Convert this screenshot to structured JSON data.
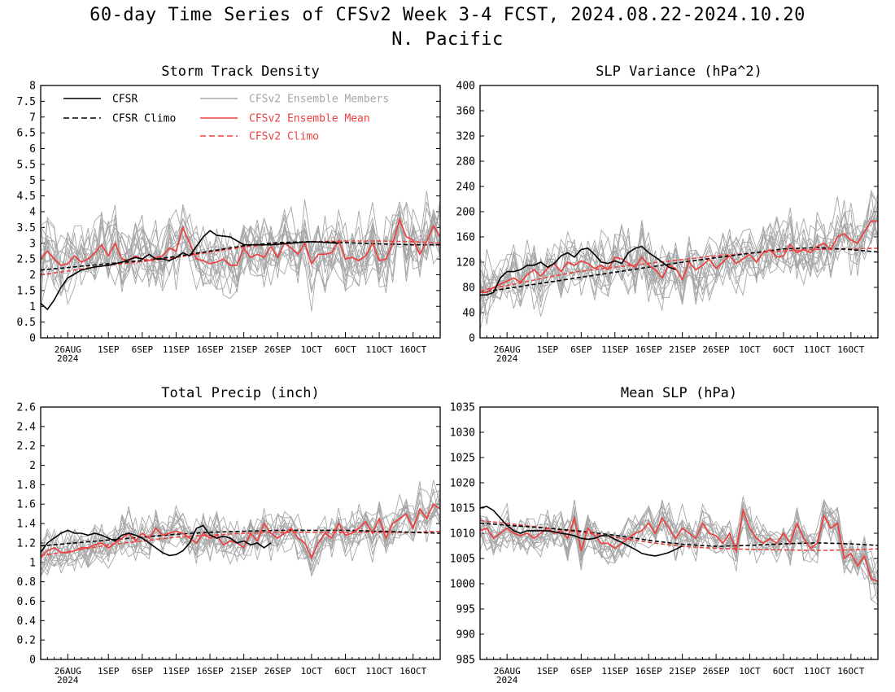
{
  "page": {
    "title": "60-day Time Series of CFSv2 Week 3-4 FCST, 2024.08.22-2024.10.20",
    "subtitle": "N. Pacific"
  },
  "colors": {
    "cfsr": "#000000",
    "cfsr_climo": "#000000",
    "members": "#a6a6a6",
    "ens_mean": "#ef4040",
    "cfsv2_climo": "#ef4040"
  },
  "legend": {
    "items": [
      {
        "key": "cfsr",
        "label": "CFSR",
        "style": "solid",
        "color": "#000000"
      },
      {
        "key": "cfsr_climo",
        "label": "CFSR Climo",
        "style": "dashed",
        "color": "#000000"
      },
      {
        "key": "members",
        "label": "CFSv2 Ensemble Members",
        "style": "solid",
        "color": "#a6a6a6"
      },
      {
        "key": "ens_mean",
        "label": "CFSv2 Ensemble Mean",
        "style": "solid",
        "color": "#ef4040"
      },
      {
        "key": "cfsv2_climo",
        "label": "CFSv2 Climo",
        "style": "dashed",
        "color": "#ef4040"
      }
    ]
  },
  "chart_data": [
    {
      "type": "line",
      "title": "Storm Track Density",
      "ylim": [
        0,
        8
      ],
      "yticks": [
        "0",
        "0.5",
        "1",
        "1.5",
        "2",
        "2.5",
        "3",
        "3.5",
        "4",
        "4.5",
        "5",
        "5.5",
        "6",
        "6.5",
        "7",
        "7.5",
        "8"
      ],
      "xticks": [
        {
          "day": 4,
          "label": "26AUG"
        },
        {
          "day": 10,
          "label": "1SEP"
        },
        {
          "day": 15,
          "label": "6SEP"
        },
        {
          "day": 20,
          "label": "11SEP"
        },
        {
          "day": 25,
          "label": "16SEP"
        },
        {
          "day": 30,
          "label": "21SEP"
        },
        {
          "day": 35,
          "label": "26SEP"
        },
        {
          "day": 40,
          "label": "1OCT"
        },
        {
          "day": 45,
          "label": "6OCT"
        },
        {
          "day": 50,
          "label": "11OCT"
        },
        {
          "day": 55,
          "label": "16OCT"
        }
      ],
      "xsublabel": "2024",
      "xrange": [
        0,
        59
      ],
      "cfsr": {
        "x": [
          0,
          1,
          2,
          3,
          4,
          6,
          8,
          10,
          12,
          14,
          15,
          16,
          17,
          18,
          19,
          20,
          21,
          22,
          23,
          24,
          25,
          26,
          28,
          30,
          34,
          40,
          44
        ],
        "y": [
          1.1,
          0.9,
          1.2,
          1.6,
          1.9,
          2.15,
          2.25,
          2.3,
          2.4,
          2.55,
          2.5,
          2.65,
          2.5,
          2.5,
          2.45,
          2.55,
          2.7,
          2.6,
          2.9,
          3.2,
          3.4,
          3.25,
          3.2,
          2.95,
          2.95,
          3.05,
          3.0
        ]
      },
      "cfsr_climo": {
        "x": [
          0,
          5,
          10,
          15,
          20,
          25,
          30,
          35,
          40,
          45,
          50,
          55,
          59
        ],
        "y": [
          2.15,
          2.25,
          2.35,
          2.45,
          2.58,
          2.75,
          2.92,
          3.02,
          3.05,
          3.02,
          2.98,
          2.95,
          2.95
        ]
      },
      "cfsv2_climo": {
        "x": [
          0,
          5,
          10,
          15,
          20,
          25,
          30,
          35,
          40,
          45,
          50,
          55,
          59
        ],
        "y": [
          2.0,
          2.15,
          2.3,
          2.42,
          2.55,
          2.72,
          2.88,
          2.98,
          3.05,
          3.07,
          3.07,
          3.05,
          3.0
        ]
      },
      "ens_mean": {
        "y": [
          2.5,
          2.75,
          2.5,
          2.3,
          2.35,
          2.6,
          2.4,
          2.5,
          2.7,
          2.95,
          2.6,
          3.0,
          2.5,
          2.45,
          2.6,
          2.5,
          2.45,
          2.55,
          2.6,
          2.85,
          2.75,
          3.5,
          3.0,
          2.5,
          2.45,
          2.35,
          2.4,
          2.5,
          2.3,
          2.3,
          2.85,
          2.55,
          2.65,
          2.55,
          2.9,
          2.55,
          3.0,
          2.85,
          2.65,
          3.0,
          2.35,
          2.65,
          2.65,
          2.7,
          3.1,
          2.5,
          2.55,
          2.45,
          2.6,
          3.0,
          2.45,
          2.5,
          3.0,
          3.75,
          3.2,
          3.1,
          2.65,
          3.05,
          3.55,
          3.2
        ]
      },
      "members": {
        "count": 16,
        "spread": 0.85,
        "seed": 11
      }
    },
    {
      "type": "line",
      "title": "SLP Variance (hPa^2)",
      "ylim": [
        0,
        400
      ],
      "yticks": [
        "0",
        "40",
        "80",
        "120",
        "160",
        "200",
        "240",
        "280",
        "320",
        "360",
        "400"
      ],
      "xticks": [
        {
          "day": 4,
          "label": "26AUG"
        },
        {
          "day": 10,
          "label": "1SEP"
        },
        {
          "day": 15,
          "label": "6SEP"
        },
        {
          "day": 20,
          "label": "11SEP"
        },
        {
          "day": 25,
          "label": "16SEP"
        },
        {
          "day": 30,
          "label": "21SEP"
        },
        {
          "day": 35,
          "label": "26SEP"
        },
        {
          "day": 40,
          "label": "1OCT"
        },
        {
          "day": 45,
          "label": "6OCT"
        },
        {
          "day": 50,
          "label": "11OCT"
        },
        {
          "day": 55,
          "label": "16OCT"
        }
      ],
      "xsublabel": "2024",
      "xrange": [
        0,
        59
      ],
      "cfsr": {
        "x": [
          0,
          1,
          2,
          3,
          4,
          5,
          6,
          7,
          8,
          9,
          10,
          11,
          12,
          13,
          14,
          15,
          16,
          17,
          18,
          19,
          20,
          21,
          22,
          23,
          24,
          25,
          26,
          27,
          28,
          29
        ],
        "y": [
          68,
          68,
          72,
          95,
          105,
          105,
          108,
          115,
          115,
          120,
          112,
          118,
          130,
          135,
          128,
          140,
          142,
          132,
          120,
          118,
          122,
          118,
          135,
          142,
          145,
          135,
          128,
          120,
          112,
          108
        ]
      },
      "cfsr_climo": {
        "x": [
          0,
          5,
          10,
          15,
          20,
          25,
          30,
          35,
          40,
          45,
          50,
          55,
          59
        ],
        "y": [
          72,
          80,
          88,
          96,
          104,
          112,
          120,
          127,
          134,
          141,
          143,
          140,
          136
        ]
      },
      "cfsv2_climo": {
        "x": [
          0,
          5,
          10,
          15,
          20,
          25,
          30,
          35,
          40,
          45,
          50,
          55,
          59
        ],
        "y": [
          75,
          85,
          96,
          106,
          112,
          118,
          124,
          130,
          134,
          138,
          140,
          141,
          142
        ]
      },
      "ens_mean": {
        "y": [
          72,
          72,
          80,
          85,
          90,
          95,
          88,
          100,
          108,
          98,
          110,
          118,
          105,
          120,
          115,
          122,
          118,
          110,
          115,
          108,
          128,
          125,
          118,
          112,
          128,
          115,
          108,
          95,
          115,
          110,
          92,
          120,
          108,
          115,
          125,
          110,
          120,
          130,
          118,
          125,
          132,
          120,
          135,
          140,
          128,
          130,
          148,
          135,
          140,
          135,
          145,
          150,
          140,
          160,
          165,
          155,
          150,
          168,
          185,
          185
        ]
      },
      "members": {
        "count": 16,
        "spread": 38,
        "seed": 23
      }
    },
    {
      "type": "line",
      "title": "Total Precip (inch)",
      "ylim": [
        0,
        2.6
      ],
      "yticks": [
        "0",
        "0.2",
        "0.4",
        "0.6",
        "0.8",
        "1",
        "1.2",
        "1.4",
        "1.6",
        "1.8",
        "2",
        "2.2",
        "2.4",
        "2.6"
      ],
      "xticks": [
        {
          "day": 4,
          "label": "26AUG"
        },
        {
          "day": 10,
          "label": "1SEP"
        },
        {
          "day": 15,
          "label": "6SEP"
        },
        {
          "day": 20,
          "label": "11SEP"
        },
        {
          "day": 25,
          "label": "16SEP"
        },
        {
          "day": 30,
          "label": "21SEP"
        },
        {
          "day": 35,
          "label": "26SEP"
        },
        {
          "day": 40,
          "label": "1OCT"
        },
        {
          "day": 45,
          "label": "6OCT"
        },
        {
          "day": 50,
          "label": "11OCT"
        },
        {
          "day": 55,
          "label": "16OCT"
        }
      ],
      "xsublabel": "2024",
      "xrange": [
        0,
        59
      ],
      "cfsr": {
        "x": [
          0,
          1,
          2,
          3,
          4,
          5,
          6,
          7,
          8,
          9,
          10,
          11,
          12,
          13,
          14,
          15,
          16,
          17,
          18,
          19,
          20,
          21,
          22,
          23,
          24,
          25,
          26,
          27,
          28,
          29,
          30,
          31,
          32,
          33,
          34
        ],
        "y": [
          1.1,
          1.2,
          1.25,
          1.3,
          1.33,
          1.3,
          1.3,
          1.28,
          1.3,
          1.28,
          1.25,
          1.22,
          1.28,
          1.3,
          1.28,
          1.25,
          1.2,
          1.15,
          1.1,
          1.07,
          1.08,
          1.12,
          1.2,
          1.35,
          1.38,
          1.28,
          1.25,
          1.27,
          1.25,
          1.2,
          1.22,
          1.18,
          1.2,
          1.15,
          1.2
        ]
      },
      "cfsr_climo": {
        "x": [
          0,
          5,
          10,
          15,
          20,
          25,
          30,
          35,
          40,
          45,
          50,
          55,
          59
        ],
        "y": [
          1.17,
          1.2,
          1.23,
          1.26,
          1.29,
          1.31,
          1.32,
          1.33,
          1.33,
          1.33,
          1.32,
          1.31,
          1.3
        ]
      },
      "cfsv2_climo": {
        "x": [
          0,
          5,
          10,
          15,
          20,
          25,
          30,
          35,
          40,
          45,
          50,
          55,
          59
        ],
        "y": [
          1.07,
          1.12,
          1.18,
          1.22,
          1.26,
          1.28,
          1.3,
          1.31,
          1.31,
          1.31,
          1.31,
          1.31,
          1.32
        ]
      },
      "ens_mean": {
        "y": [
          1.05,
          1.12,
          1.15,
          1.1,
          1.1,
          1.12,
          1.15,
          1.15,
          1.18,
          1.2,
          1.15,
          1.2,
          1.25,
          1.3,
          1.22,
          1.3,
          1.25,
          1.35,
          1.28,
          1.3,
          1.32,
          1.3,
          1.25,
          1.2,
          1.3,
          1.25,
          1.28,
          1.18,
          1.22,
          1.2,
          1.15,
          1.3,
          1.22,
          1.4,
          1.3,
          1.25,
          1.3,
          1.35,
          1.25,
          1.2,
          1.05,
          1.2,
          1.3,
          1.25,
          1.4,
          1.28,
          1.3,
          1.35,
          1.42,
          1.3,
          1.45,
          1.25,
          1.4,
          1.45,
          1.5,
          1.35,
          1.55,
          1.45,
          1.6,
          1.55
        ]
      },
      "members": {
        "count": 16,
        "spread": 0.17,
        "seed": 37
      }
    },
    {
      "type": "line",
      "title": "Mean SLP (hPa)",
      "ylim": [
        985,
        1035
      ],
      "yticks": [
        "985",
        "990",
        "995",
        "1000",
        "1005",
        "1010",
        "1015",
        "1020",
        "1025",
        "1030",
        "1035"
      ],
      "xticks": [
        {
          "day": 4,
          "label": "26AUG"
        },
        {
          "day": 10,
          "label": "1SEP"
        },
        {
          "day": 15,
          "label": "6SEP"
        },
        {
          "day": 20,
          "label": "11SEP"
        },
        {
          "day": 25,
          "label": "16SEP"
        },
        {
          "day": 30,
          "label": "21SEP"
        },
        {
          "day": 35,
          "label": "26SEP"
        },
        {
          "day": 40,
          "label": "1OCT"
        },
        {
          "day": 45,
          "label": "6OCT"
        },
        {
          "day": 50,
          "label": "11OCT"
        },
        {
          "day": 55,
          "label": "16OCT"
        }
      ],
      "xsublabel": "2024",
      "xrange": [
        0,
        59
      ],
      "cfsr": {
        "x": [
          0,
          1,
          2,
          3,
          4,
          5,
          6,
          7,
          8,
          9,
          10,
          11,
          12,
          13,
          14,
          15,
          16,
          17,
          18,
          19,
          20,
          21,
          22,
          23,
          24,
          25,
          26,
          27,
          28,
          29,
          30
        ],
        "y": [
          1015,
          1015.3,
          1014.5,
          1013,
          1011.5,
          1010.5,
          1010,
          1010.5,
          1010.5,
          1010.5,
          1010.5,
          1010.3,
          1010,
          1009.8,
          1009.5,
          1009,
          1008.8,
          1009,
          1009.5,
          1009.5,
          1008.8,
          1008.2,
          1007.5,
          1006.8,
          1006,
          1005.7,
          1005.5,
          1005.8,
          1006.2,
          1006.8,
          1007.5
        ]
      },
      "cfsr_climo": {
        "x": [
          0,
          5,
          10,
          15,
          20,
          25,
          30,
          35,
          40,
          45,
          50,
          55,
          59
        ],
        "y": [
          1012,
          1011.5,
          1011,
          1010.4,
          1009.6,
          1008.6,
          1007.8,
          1007.4,
          1007.6,
          1007.9,
          1008.1,
          1007.9,
          1007.6
        ]
      },
      "cfsv2_climo": {
        "x": [
          0,
          5,
          10,
          15,
          20,
          25,
          30,
          35,
          40,
          45,
          50,
          55,
          59
        ],
        "y": [
          1012.5,
          1011.8,
          1011,
          1010.2,
          1009.2,
          1008.2,
          1007.4,
          1007,
          1006.8,
          1006.7,
          1006.6,
          1006.7,
          1006.9
        ]
      },
      "ens_mean": {
        "y": [
          1010.5,
          1011,
          1009,
          1010,
          1011,
          1010,
          1009.5,
          1010,
          1009,
          1010,
          1011,
          1010,
          1010.5,
          1009,
          1013,
          1006.5,
          1011,
          1009.5,
          1008,
          1008,
          1007,
          1008,
          1009,
          1010,
          1010.5,
          1012,
          1010,
          1013,
          1011,
          1009,
          1011,
          1010,
          1009,
          1012,
          1010,
          1009.5,
          1008,
          1010,
          1006.5,
          1014.5,
          1011,
          1009,
          1008,
          1009,
          1008,
          1010,
          1008,
          1012,
          1009,
          1007,
          1008,
          1013.5,
          1011,
          1012,
          1005,
          1006,
          1003.5,
          1005.5,
          1001,
          1000.5
        ]
      },
      "members": {
        "count": 16,
        "spread": 3.0,
        "seed": 53
      }
    }
  ]
}
